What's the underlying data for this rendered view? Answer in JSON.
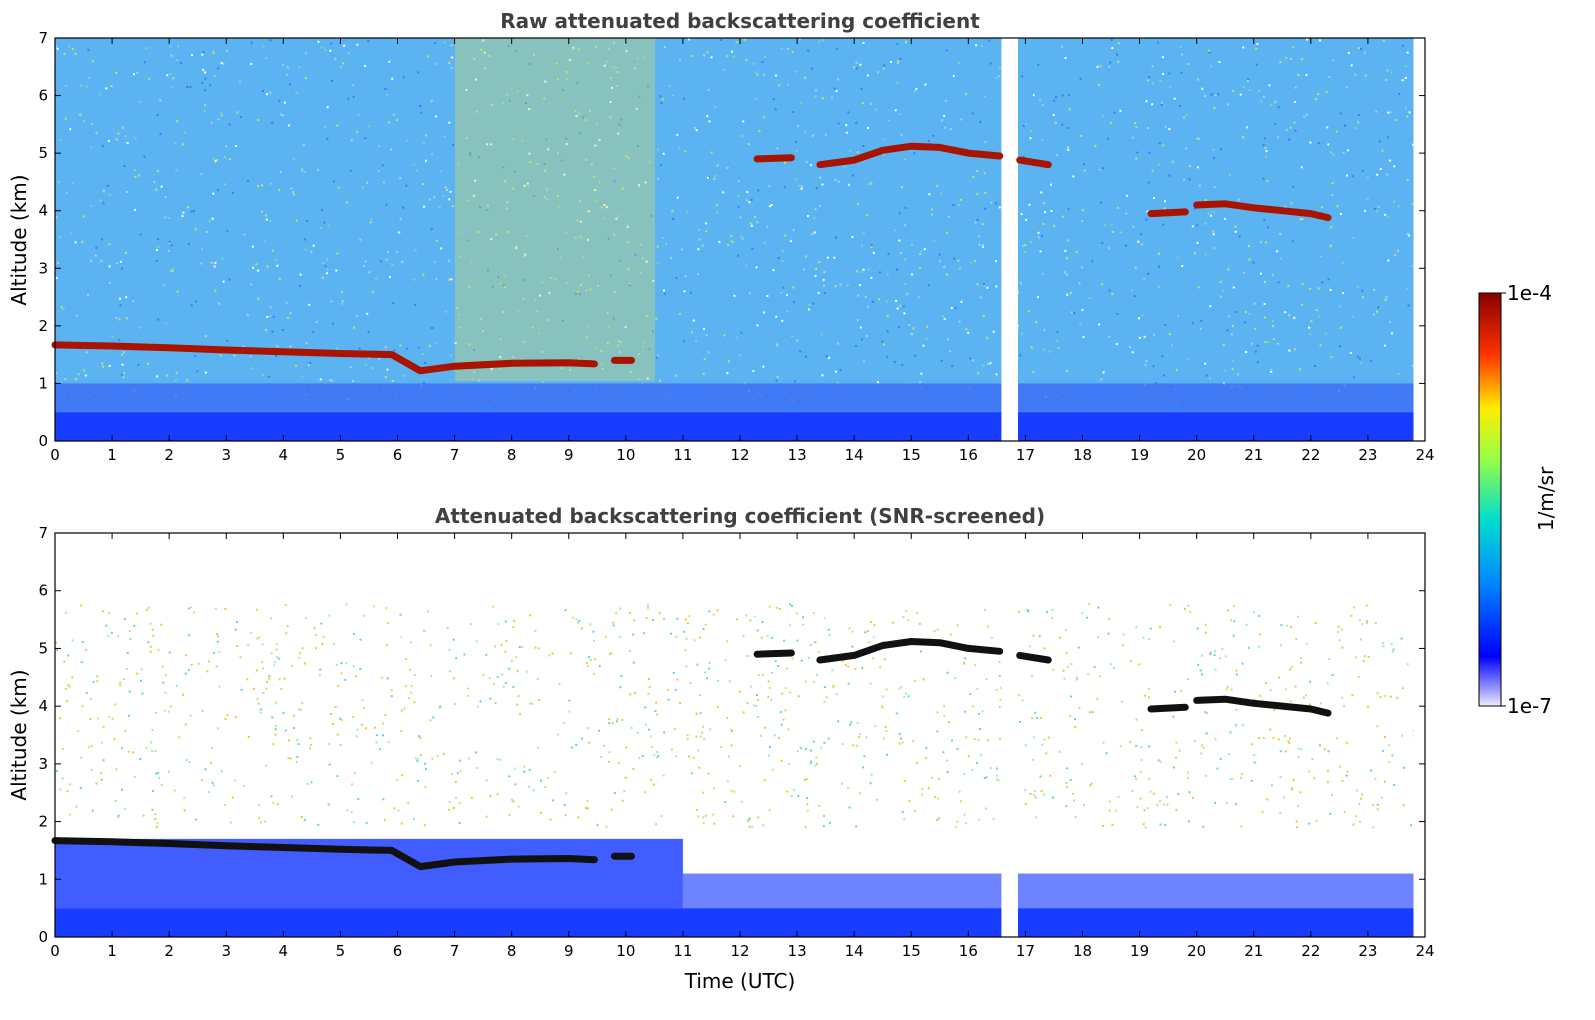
{
  "chart_data": [
    {
      "type": "heatmap",
      "title": "Raw attenuated backscattering coefficient",
      "xlabel": "",
      "ylabel": "Altitude (km)",
      "xlim": [
        0,
        24
      ],
      "ylim": [
        0,
        7
      ],
      "x_ticks": [
        "0",
        "1",
        "2",
        "3",
        "4",
        "5",
        "6",
        "7",
        "8",
        "9",
        "10",
        "11",
        "12",
        "13",
        "14",
        "15",
        "16",
        "17",
        "18",
        "19",
        "20",
        "21",
        "22",
        "23",
        "24"
      ],
      "y_ticks": [
        "0",
        "1",
        "2",
        "3",
        "4",
        "5",
        "6",
        "7"
      ],
      "data_gap_hours": [
        16.58,
        16.87
      ],
      "data_end_hour": 23.8,
      "cloud_layers": [
        {
          "t": [
            0,
            1,
            2,
            3,
            4,
            5,
            5.9,
            6.4,
            7,
            8,
            9,
            9.45
          ],
          "alt": [
            1.67,
            1.65,
            1.62,
            1.58,
            1.55,
            1.52,
            1.5,
            1.22,
            1.3,
            1.35,
            1.36,
            1.34
          ]
        },
        {
          "t": [
            9.8,
            10.1
          ],
          "alt": [
            1.4,
            1.4
          ]
        },
        {
          "t": [
            12.3,
            12.9
          ],
          "alt": [
            4.9,
            4.92
          ]
        },
        {
          "t": [
            13.4,
            14,
            14.5,
            15,
            15.5,
            16,
            16.55
          ],
          "alt": [
            4.8,
            4.88,
            5.05,
            5.12,
            5.1,
            5.0,
            4.95
          ]
        },
        {
          "t": [
            16.9,
            17.4
          ],
          "alt": [
            4.88,
            4.8
          ]
        },
        {
          "t": [
            19.2,
            19.8
          ],
          "alt": [
            3.95,
            3.98
          ]
        },
        {
          "t": [
            20.0,
            20.5,
            21,
            21.5,
            22,
            22.3
          ],
          "alt": [
            4.1,
            4.12,
            4.05,
            4.0,
            3.95,
            3.88
          ]
        }
      ]
    },
    {
      "type": "heatmap",
      "title": "Attenuated backscattering coefficient (SNR-screened)",
      "xlabel": "Time (UTC)",
      "ylabel": "Altitude (km)",
      "xlim": [
        0,
        24
      ],
      "ylim": [
        0,
        7
      ],
      "x_ticks": [
        "0",
        "1",
        "2",
        "3",
        "4",
        "5",
        "6",
        "7",
        "8",
        "9",
        "10",
        "11",
        "12",
        "13",
        "14",
        "15",
        "16",
        "17",
        "18",
        "19",
        "20",
        "21",
        "22",
        "23",
        "24"
      ],
      "y_ticks": [
        "0",
        "1",
        "2",
        "3",
        "4",
        "5",
        "6",
        "7"
      ],
      "data_gap_hours": [
        16.58,
        16.87
      ],
      "data_end_hour": 23.8
    }
  ],
  "colorbar": {
    "label": "1/m/sr",
    "max_label": "1e-4",
    "min_label": "1e-7",
    "scale": "log",
    "colormap": [
      "#eeeeff",
      "#0000ff",
      "#00aaff",
      "#00ffaa",
      "#ccff33",
      "#ffcc00",
      "#ff3300",
      "#880000"
    ]
  },
  "colors": {
    "background_noise": "#4aa6f0",
    "near_surface": "#1a3cff",
    "cloud_raw": "#a81400",
    "cloud_screened": "#111111",
    "aerosol_warm": "#d8e060"
  }
}
